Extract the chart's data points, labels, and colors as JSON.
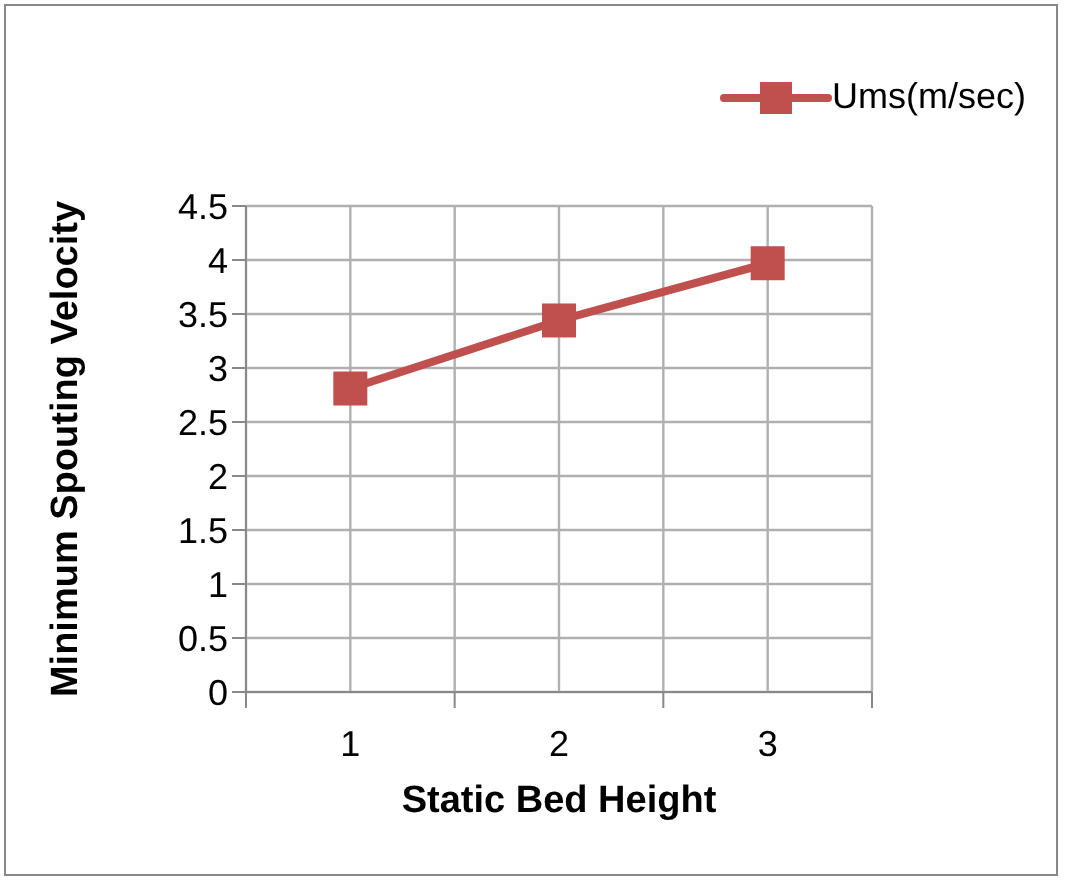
{
  "chart_data": {
    "type": "line",
    "xlabel": "Static Bed Height",
    "ylabel": "Minimum Spouting Velocity",
    "x": [
      1,
      2,
      3
    ],
    "series": [
      {
        "name": "Ums(m/sec)",
        "color": "#c0504d",
        "values": [
          2.81,
          3.44,
          3.97
        ]
      }
    ],
    "xlim": [
      0.5,
      3.5
    ],
    "xticks": [
      {
        "value": 0.5,
        "label": null
      },
      1,
      {
        "value": 1.5,
        "label": null
      },
      2,
      {
        "value": 2.5,
        "label": null
      },
      3,
      {
        "value": 3.5,
        "label": null
      }
    ],
    "ylim": [
      0,
      4.5
    ],
    "yticks": [
      0,
      0.5,
      1,
      1.5,
      2,
      2.5,
      3,
      3.5,
      4,
      4.5
    ],
    "grid": true,
    "legend": "top right",
    "marker": "square",
    "line_style": "solid"
  }
}
